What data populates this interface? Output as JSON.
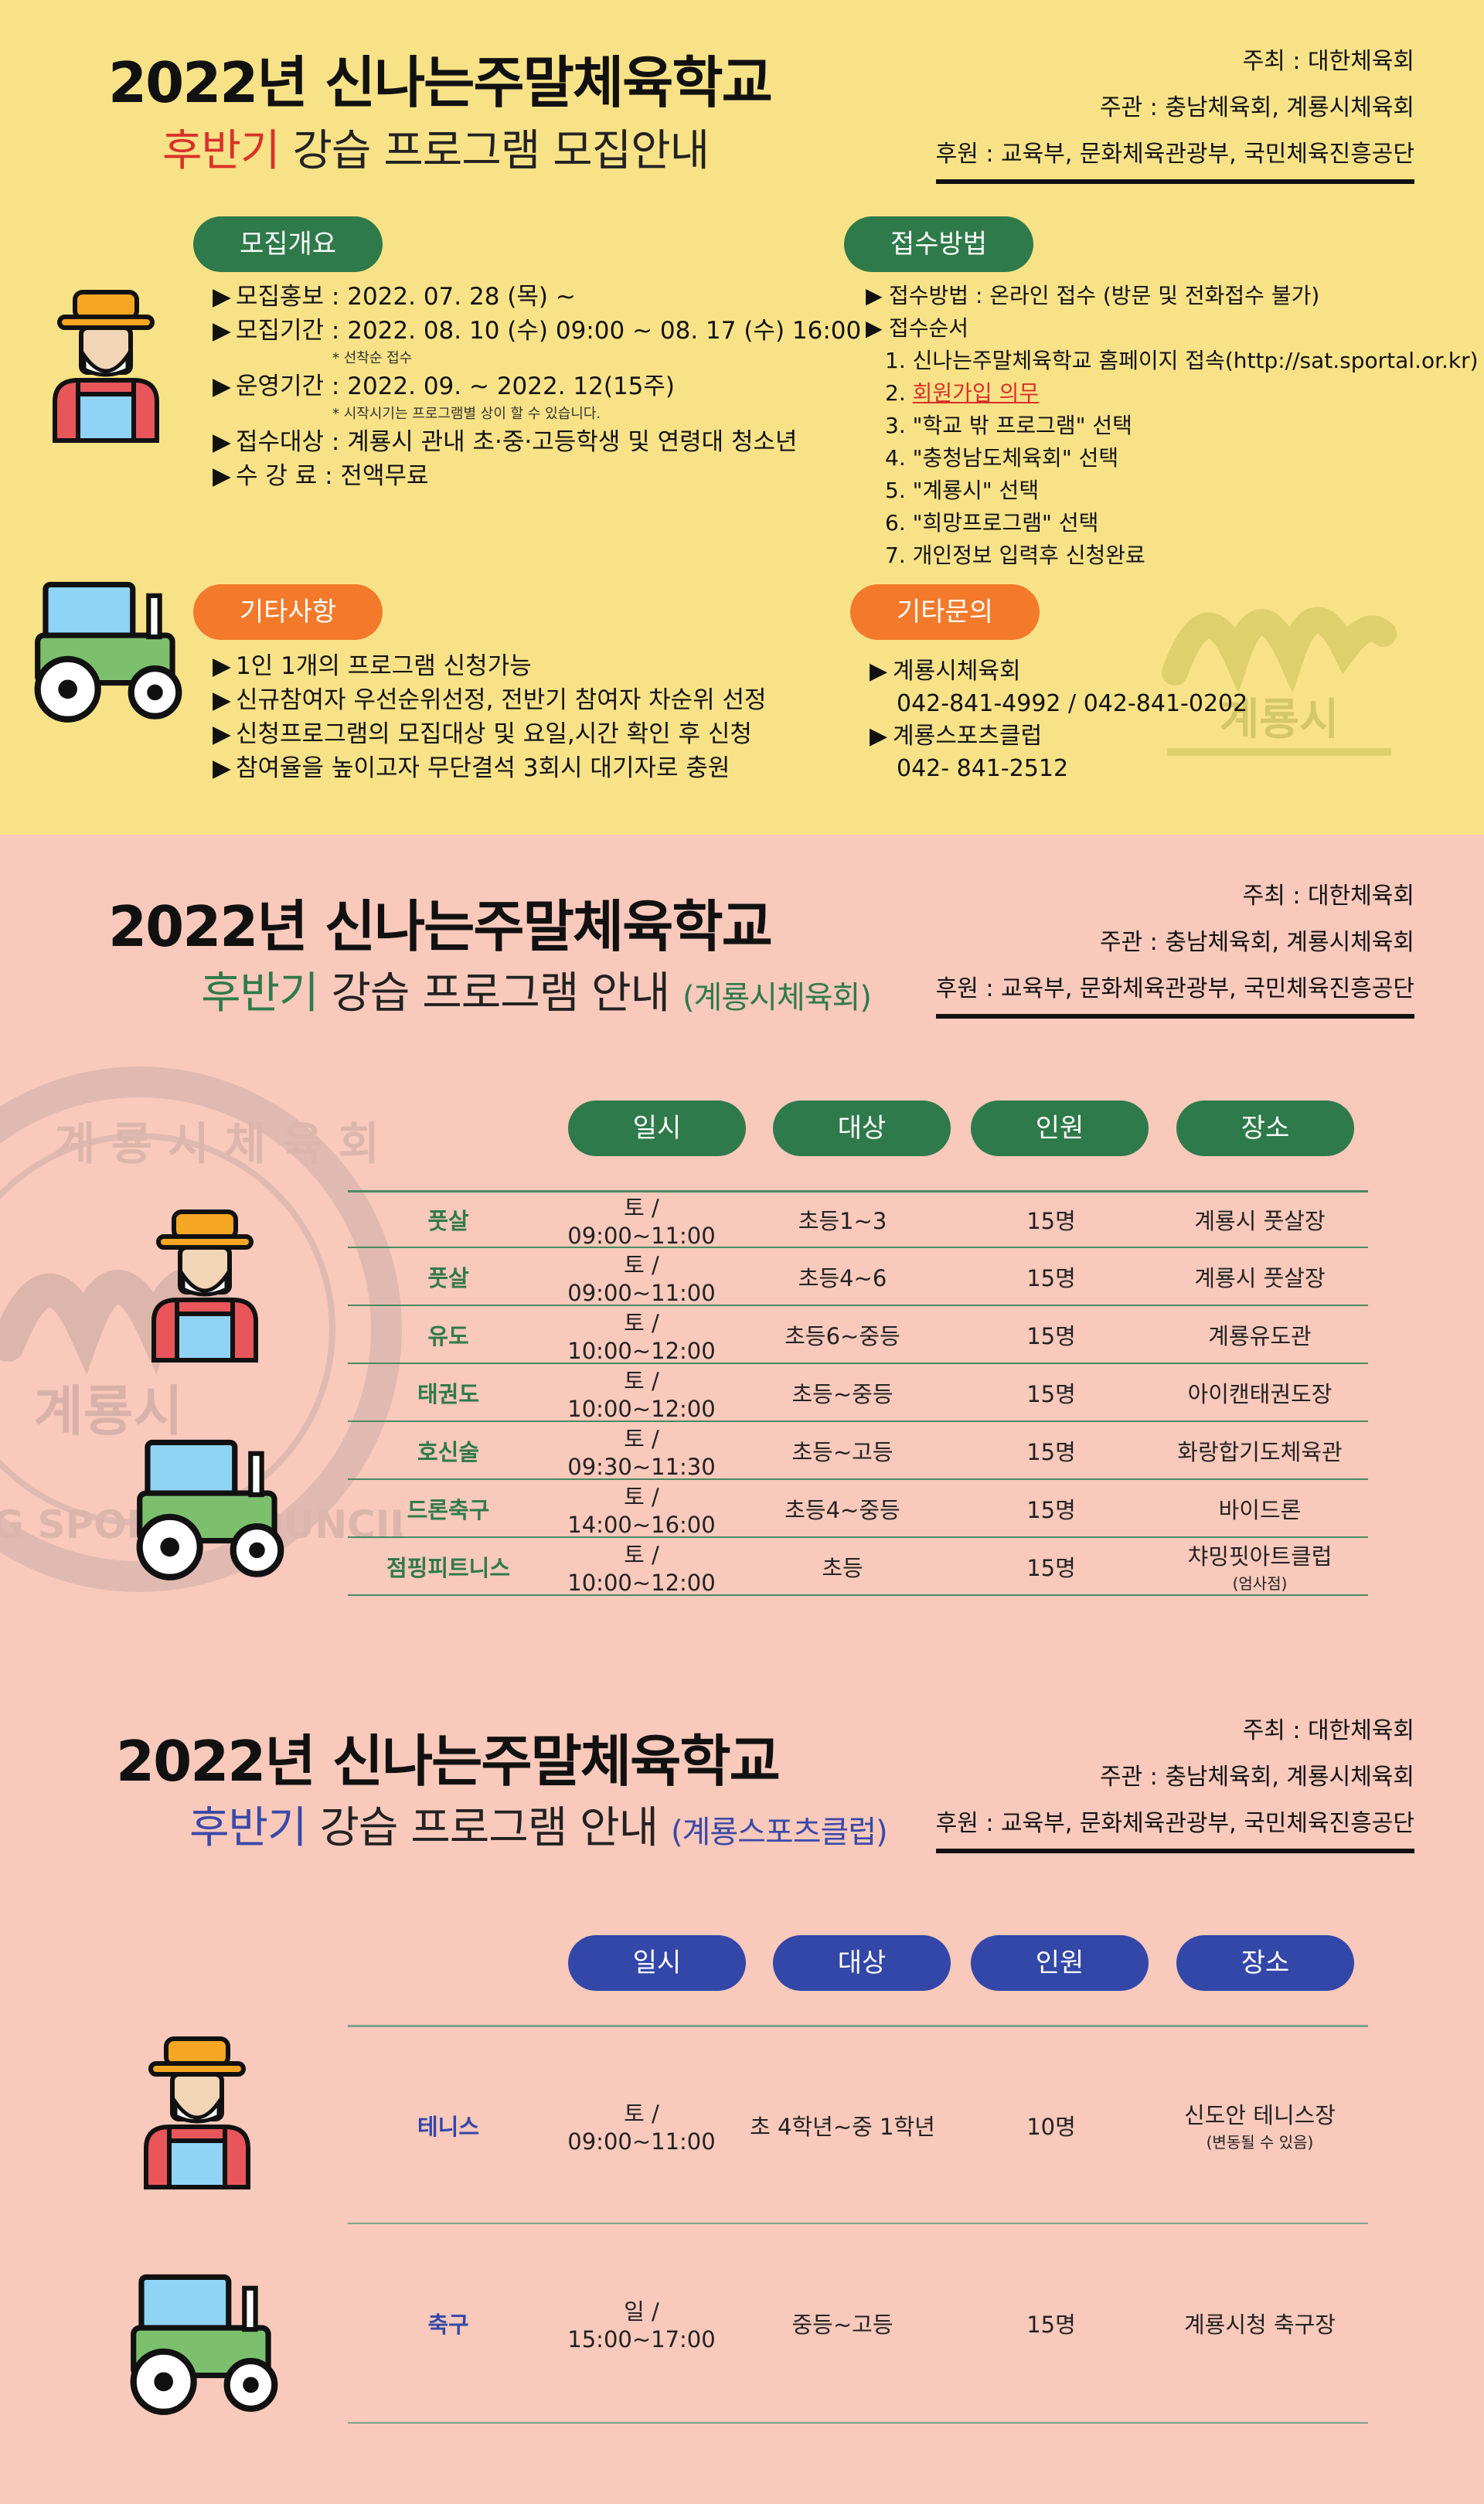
{
  "section1": {
    "title": "2022년 신나는주말체육학교",
    "subtitle_accent": "후반기",
    "subtitle_rest": " 강습 프로그램 모집안내",
    "org": {
      "host": "주최 : 대한체육회",
      "organizer": "주관 : 충남체육회, 계룡시체육회",
      "sponsor": "후원 : 교육부, 문화체육관광부, 국민체육진흥공단"
    },
    "overview": {
      "label": "모집개요",
      "items": [
        "모집홍보 : 2022. 07. 28 (목) ~",
        "모집기간 : 2022. 08. 10 (수) 09:00 ~ 08. 17 (수) 16:00"
      ],
      "note1": "* 선착순 접수",
      "item3": "운영기간 : 2022. 09. ~ 2022. 12(15주)",
      "note2": "* 시작시기는 프로그램별 상이 할 수 있습니다.",
      "item4": "접수대상 : 계룡시 관내 초·중·고등학생 및 연령대 청소년",
      "item5": "수 강 료 : 전액무료"
    },
    "apply": {
      "label": "접수방법",
      "method": "접수방법 : 온라인 접수 (방문 및 전화접수 불가)",
      "order_title": "접수순서",
      "steps": [
        "1. 신나는주말체육학교 홈페이지  접속(http://sat.sportal.or.kr)",
        "2. ",
        "3. \"학교 밖 프로그램\" 선택",
        "4. \"충청남도체육회\" 선택",
        "5. \"계룡시\" 선택",
        "6. \"희망프로그램\" 선택",
        "7. 개인정보 입력후 신청완료"
      ],
      "step2_highlight": "회원가입 의무"
    },
    "misc": {
      "label": "기타사항",
      "items": [
        "1인 1개의 프로그램 신청가능",
        "신규참여자 우선순위선정, 전반기 참여자 차순위 선정",
        "신청프로그램의 모집대상 및 요일,시간 확인 후 신청",
        "참여율을 높이고자 무단결석 3회시 대기자로 충원"
      ]
    },
    "contact": {
      "label": "기타문의",
      "org1": "계룡시체육회",
      "phone1": "042-841-4992 / 042-841-0202",
      "org2": "계룡스포츠클럽",
      "phone2": "042- 841-2512"
    },
    "watermark_text": "계룡시"
  },
  "section2": {
    "title": "2022년 신나는주말체육학교",
    "subtitle_accent": "후반기",
    "subtitle_rest": " 강습 프로그램 안내 ",
    "subtitle_small": "(계룡시체육회)",
    "org": {
      "host": "주최 : 대한체육회",
      "organizer": "주관 : 충남체육회, 계룡시체육회",
      "sponsor": "후원 : 교육부, 문화체육관광부, 국민체육진흥공단"
    },
    "headers": [
      "일시",
      "대상",
      "인원",
      "장소"
    ],
    "rows": [
      {
        "program": "풋살",
        "time": "토 / 09:00~11:00",
        "target": "초등1~3",
        "count": "15명",
        "place": "계룡시 풋살장",
        "place_note": ""
      },
      {
        "program": "풋살",
        "time": "토 / 09:00~11:00",
        "target": "초등4~6",
        "count": "15명",
        "place": "계룡시 풋살장",
        "place_note": ""
      },
      {
        "program": "유도",
        "time": "토 / 10:00~12:00",
        "target": "초등6~중등",
        "count": "15명",
        "place": "계룡유도관",
        "place_note": ""
      },
      {
        "program": "태권도",
        "time": "토 / 10:00~12:00",
        "target": "초등~중등",
        "count": "15명",
        "place": "아이캔태권도장",
        "place_note": ""
      },
      {
        "program": "호신술",
        "time": "토 / 09:30~11:30",
        "target": "초등~고등",
        "count": "15명",
        "place": "화랑합기도체육관",
        "place_note": ""
      },
      {
        "program": "드론축구",
        "time": "토 / 14:00~16:00",
        "target": "초등4~중등",
        "count": "15명",
        "place": "바이드론",
        "place_note": ""
      },
      {
        "program": "점핑피트니스",
        "time": "토 / 10:00~12:00",
        "target": "초등",
        "count": "15명",
        "place": "챠밍핏아트클럽",
        "place_note": "(엄사점)"
      }
    ],
    "watermark_text": "계룡시",
    "seal_text": "계 룡 시 체 육 회",
    "seal_text_en": "G SPORTS COUNCIL"
  },
  "section3": {
    "title": "2022년 신나는주말체육학교",
    "subtitle_accent": "후반기",
    "subtitle_rest": " 강습 프로그램 안내 ",
    "subtitle_small": "(계룡스포츠클럽)",
    "org": {
      "host": "주최 : 대한체육회",
      "organizer": "주관 : 충남체육회, 계룡시체육회",
      "sponsor": "후원 : 교육부, 문화체육관광부, 국민체육진흥공단"
    },
    "headers": [
      "일시",
      "대상",
      "인원",
      "장소"
    ],
    "rows": [
      {
        "program": "테니스",
        "time": "토 / 09:00~11:00",
        "target": "초 4학년~중 1학년",
        "count": "10명",
        "place": "신도안 테니스장",
        "place_note": "(변동될 수 있음)"
      },
      {
        "program": "축구",
        "time": "일 / 15:00~17:00",
        "target": "중등~고등",
        "count": "15명",
        "place": "계룡시청 축구장",
        "place_note": ""
      }
    ]
  },
  "colors": {
    "yellow_bg": "#f8e287",
    "pink_bg": "#f9c9bb",
    "green": "#2f7a4a",
    "orange": "#f27a2a",
    "blue": "#3347a8",
    "red": "#d9312a"
  },
  "icons": [
    "farmer-icon",
    "tractor-icon",
    "bullet-triangle-icon"
  ]
}
